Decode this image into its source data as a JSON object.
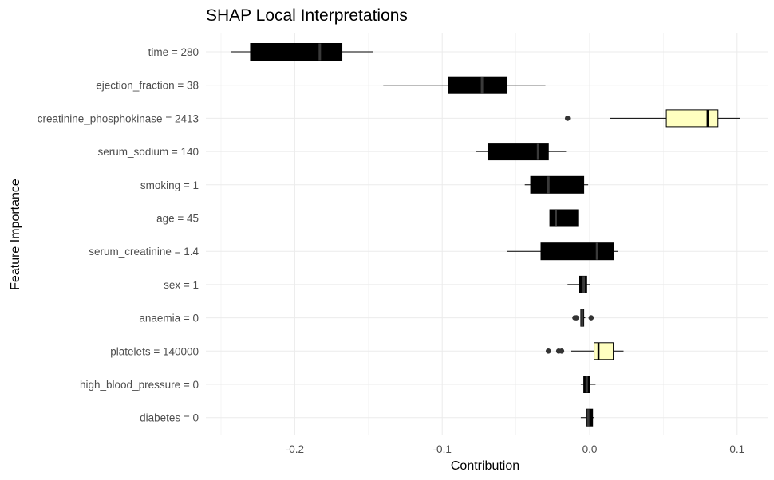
{
  "chart_data": {
    "type": "boxplot",
    "orientation": "horizontal",
    "title": "SHAP Local Interpretations",
    "xlabel": "Contribution",
    "ylabel": "Feature Importance",
    "xlim": [
      -0.25,
      0.12
    ],
    "x_ticks": [
      -0.2,
      -0.1,
      0.0,
      0.1
    ],
    "x_tick_labels": [
      "-0.2",
      "-0.1",
      "0.0",
      "0.1"
    ],
    "grid": true,
    "colors": {
      "negative": "#000000",
      "positive": "#ffffc0",
      "median_negative": "#3a3a3a",
      "median_positive": "#000000",
      "outlier": "#333333"
    },
    "features": [
      {
        "label": "time = 280",
        "whisker_low": -0.243,
        "q1": -0.23,
        "median": -0.183,
        "q3": -0.168,
        "whisker_high": -0.147,
        "outliers": [],
        "sign": "negative"
      },
      {
        "label": "ejection_fraction = 38",
        "whisker_low": -0.14,
        "q1": -0.096,
        "median": -0.073,
        "q3": -0.056,
        "whisker_high": -0.03,
        "outliers": [],
        "sign": "negative"
      },
      {
        "label": "creatinine_phosphokinase = 2413",
        "whisker_low": 0.014,
        "q1": 0.052,
        "median": 0.08,
        "q3": 0.087,
        "whisker_high": 0.102,
        "outliers": [
          -0.015
        ],
        "sign": "positive"
      },
      {
        "label": "serum_sodium = 140",
        "whisker_low": -0.077,
        "q1": -0.069,
        "median": -0.035,
        "q3": -0.028,
        "whisker_high": -0.016,
        "outliers": [],
        "sign": "negative"
      },
      {
        "label": "smoking = 1",
        "whisker_low": -0.044,
        "q1": -0.04,
        "median": -0.028,
        "q3": -0.004,
        "whisker_high": -0.001,
        "outliers": [],
        "sign": "negative"
      },
      {
        "label": "age = 45",
        "whisker_low": -0.033,
        "q1": -0.027,
        "median": -0.023,
        "q3": -0.008,
        "whisker_high": 0.012,
        "outliers": [],
        "sign": "negative"
      },
      {
        "label": "serum_creatinine = 1.4",
        "whisker_low": -0.056,
        "q1": -0.033,
        "median": 0.005,
        "q3": 0.016,
        "whisker_high": 0.019,
        "outliers": [],
        "sign": "negative"
      },
      {
        "label": "sex = 1",
        "whisker_low": -0.015,
        "q1": -0.007,
        "median": -0.004,
        "q3": -0.002,
        "whisker_high": 0.0,
        "outliers": [],
        "sign": "negative"
      },
      {
        "label": "anaemia = 0",
        "whisker_low": -0.006,
        "q1": -0.006,
        "median": -0.005,
        "q3": -0.004,
        "whisker_high": -0.003,
        "outliers": [
          -0.01,
          -0.009,
          0.001
        ],
        "sign": "negative"
      },
      {
        "label": "platelets = 140000",
        "whisker_low": -0.013,
        "q1": 0.003,
        "median": 0.006,
        "q3": 0.016,
        "whisker_high": 0.023,
        "outliers": [
          -0.028,
          -0.021,
          -0.019
        ],
        "sign": "positive"
      },
      {
        "label": "high_blood_pressure = 0",
        "whisker_low": -0.006,
        "q1": -0.004,
        "median": -0.002,
        "q3": 0.0,
        "whisker_high": 0.004,
        "outliers": [],
        "sign": "negative"
      },
      {
        "label": "diabetes = 0",
        "whisker_low": -0.006,
        "q1": -0.002,
        "median": -0.001,
        "q3": 0.002,
        "whisker_high": 0.003,
        "outliers": [],
        "sign": "negative"
      }
    ]
  }
}
